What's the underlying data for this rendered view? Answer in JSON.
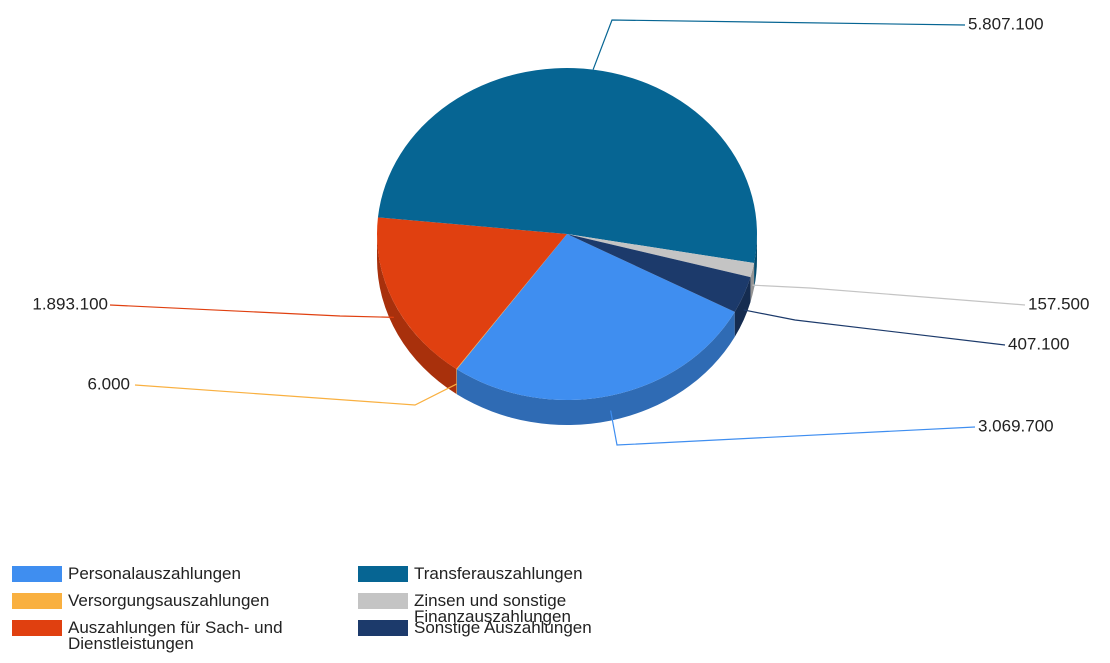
{
  "chart_data": {
    "type": "pie3d",
    "categories": [
      "Personalauszahlungen",
      "Versorgungsauszahlungen",
      "Auszahlungen für Sach- und Dienstleistungen",
      "Transferauszahlungen",
      "Zinsen und sonstige Finanzauszahlungen",
      "Sonstige Auszahlungen"
    ],
    "values": [
      3069700,
      6000,
      1893100,
      5807100,
      157500,
      407100
    ],
    "value_labels": [
      "3.069.700",
      "6.000",
      "1.893.100",
      "5.807.100",
      "157.500",
      "407.100"
    ],
    "colors": [
      "#3f8ef0",
      "#f9b040",
      "#e04010",
      "#066593",
      "#c4c4c4",
      "#1c3a6b"
    ]
  }
}
